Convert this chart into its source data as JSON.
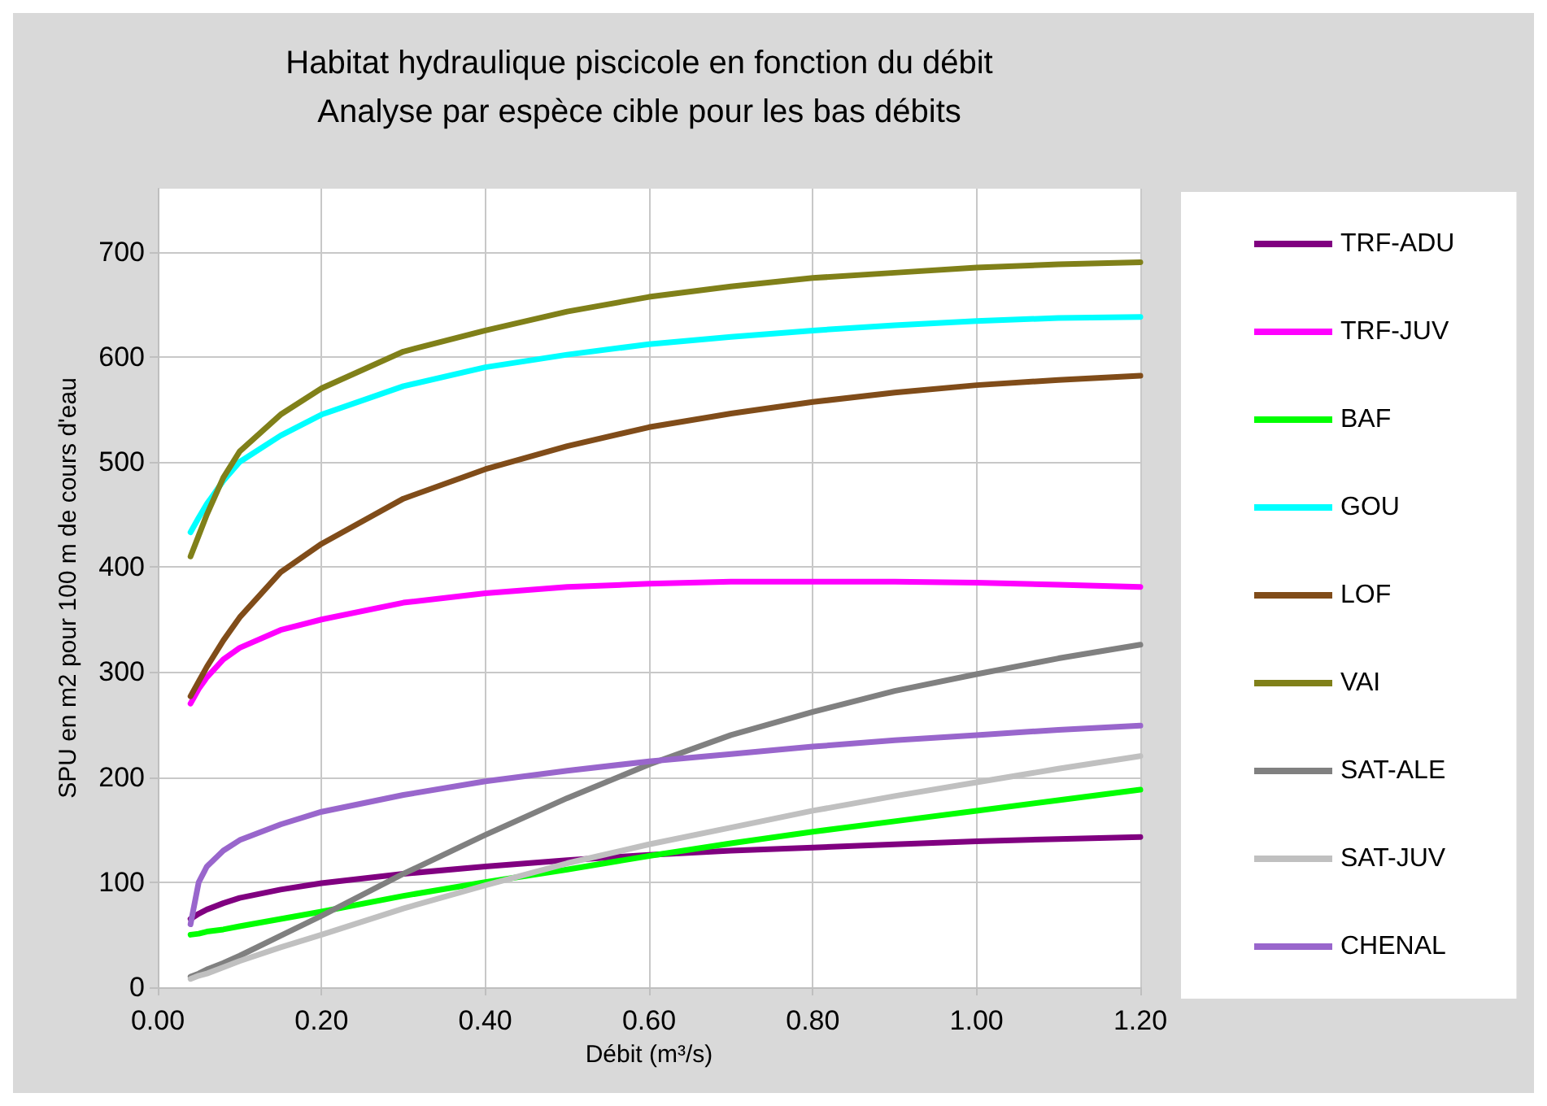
{
  "chart_data": {
    "type": "line",
    "title": "Habitat hydraulique piscicole en fonction du débit",
    "subtitle": "Analyse par espèce cible pour les bas débits",
    "xlabel": "Débit (m³/s)",
    "ylabel": "SPU en m2 pour 100 m de cours d'eau",
    "x": [
      0.04,
      0.05,
      0.06,
      0.08,
      0.1,
      0.15,
      0.2,
      0.3,
      0.4,
      0.5,
      0.6,
      0.7,
      0.8,
      0.9,
      1.0,
      1.1,
      1.2
    ],
    "series": [
      {
        "name": "TRF-ADU",
        "color": "#800080",
        "values": [
          65,
          70,
          74,
          80,
          85,
          93,
          99,
          108,
          115,
          121,
          126,
          130,
          133,
          136,
          139,
          141,
          143
        ]
      },
      {
        "name": "TRF-JUV",
        "color": "#ff00ff",
        "values": [
          270,
          284,
          295,
          312,
          323,
          340,
          350,
          366,
          375,
          381,
          384,
          386,
          386,
          386,
          385,
          383,
          381
        ]
      },
      {
        "name": "BAF",
        "color": "#00ff00",
        "values": [
          50,
          51,
          53,
          55,
          58,
          65,
          72,
          87,
          100,
          112,
          125,
          137,
          148,
          158,
          168,
          178,
          188
        ]
      },
      {
        "name": "GOU",
        "color": "#00ffff",
        "values": [
          433,
          447,
          460,
          482,
          500,
          525,
          545,
          572,
          590,
          602,
          612,
          619,
          625,
          630,
          634,
          637,
          638
        ]
      },
      {
        "name": "LOF",
        "color": "#804c19",
        "values": [
          277,
          291,
          305,
          330,
          352,
          395,
          422,
          465,
          493,
          515,
          533,
          546,
          557,
          566,
          573,
          578,
          582
        ]
      },
      {
        "name": "VAI",
        "color": "#808019",
        "values": [
          410,
          430,
          450,
          485,
          510,
          545,
          570,
          605,
          625,
          643,
          657,
          667,
          675,
          680,
          685,
          688,
          690
        ]
      },
      {
        "name": "SAT-ALE",
        "color": "#808080",
        "values": [
          10,
          13,
          17,
          23,
          30,
          49,
          68,
          108,
          145,
          180,
          212,
          240,
          262,
          282,
          298,
          313,
          326
        ]
      },
      {
        "name": "SAT-JUV",
        "color": "#c0c0c0",
        "values": [
          8,
          11,
          13,
          19,
          25,
          38,
          50,
          75,
          97,
          118,
          136,
          152,
          168,
          182,
          195,
          208,
          220
        ]
      },
      {
        "name": "CHENAL",
        "color": "#9966cc",
        "values": [
          60,
          100,
          115,
          130,
          140,
          155,
          167,
          183,
          196,
          206,
          215,
          222,
          229,
          235,
          240,
          245,
          249
        ]
      }
    ],
    "xlim": [
      0,
      1.2
    ],
    "xticks": [
      {
        "value": 0,
        "label": "0.00"
      },
      {
        "value": 0.2,
        "label": "0.20"
      },
      {
        "value": 0.4,
        "label": "0.40"
      },
      {
        "value": 0.6,
        "label": "0.60"
      },
      {
        "value": 0.8,
        "label": "0.80"
      },
      {
        "value": 1.0,
        "label": "1.00"
      },
      {
        "value": 1.2,
        "label": "1.20"
      }
    ],
    "ylim": [
      0,
      760
    ],
    "yticks": [
      0,
      100,
      200,
      300,
      400,
      500,
      600,
      700
    ],
    "grid": true,
    "legend": "right",
    "marker": "none",
    "line_style": "solid"
  }
}
